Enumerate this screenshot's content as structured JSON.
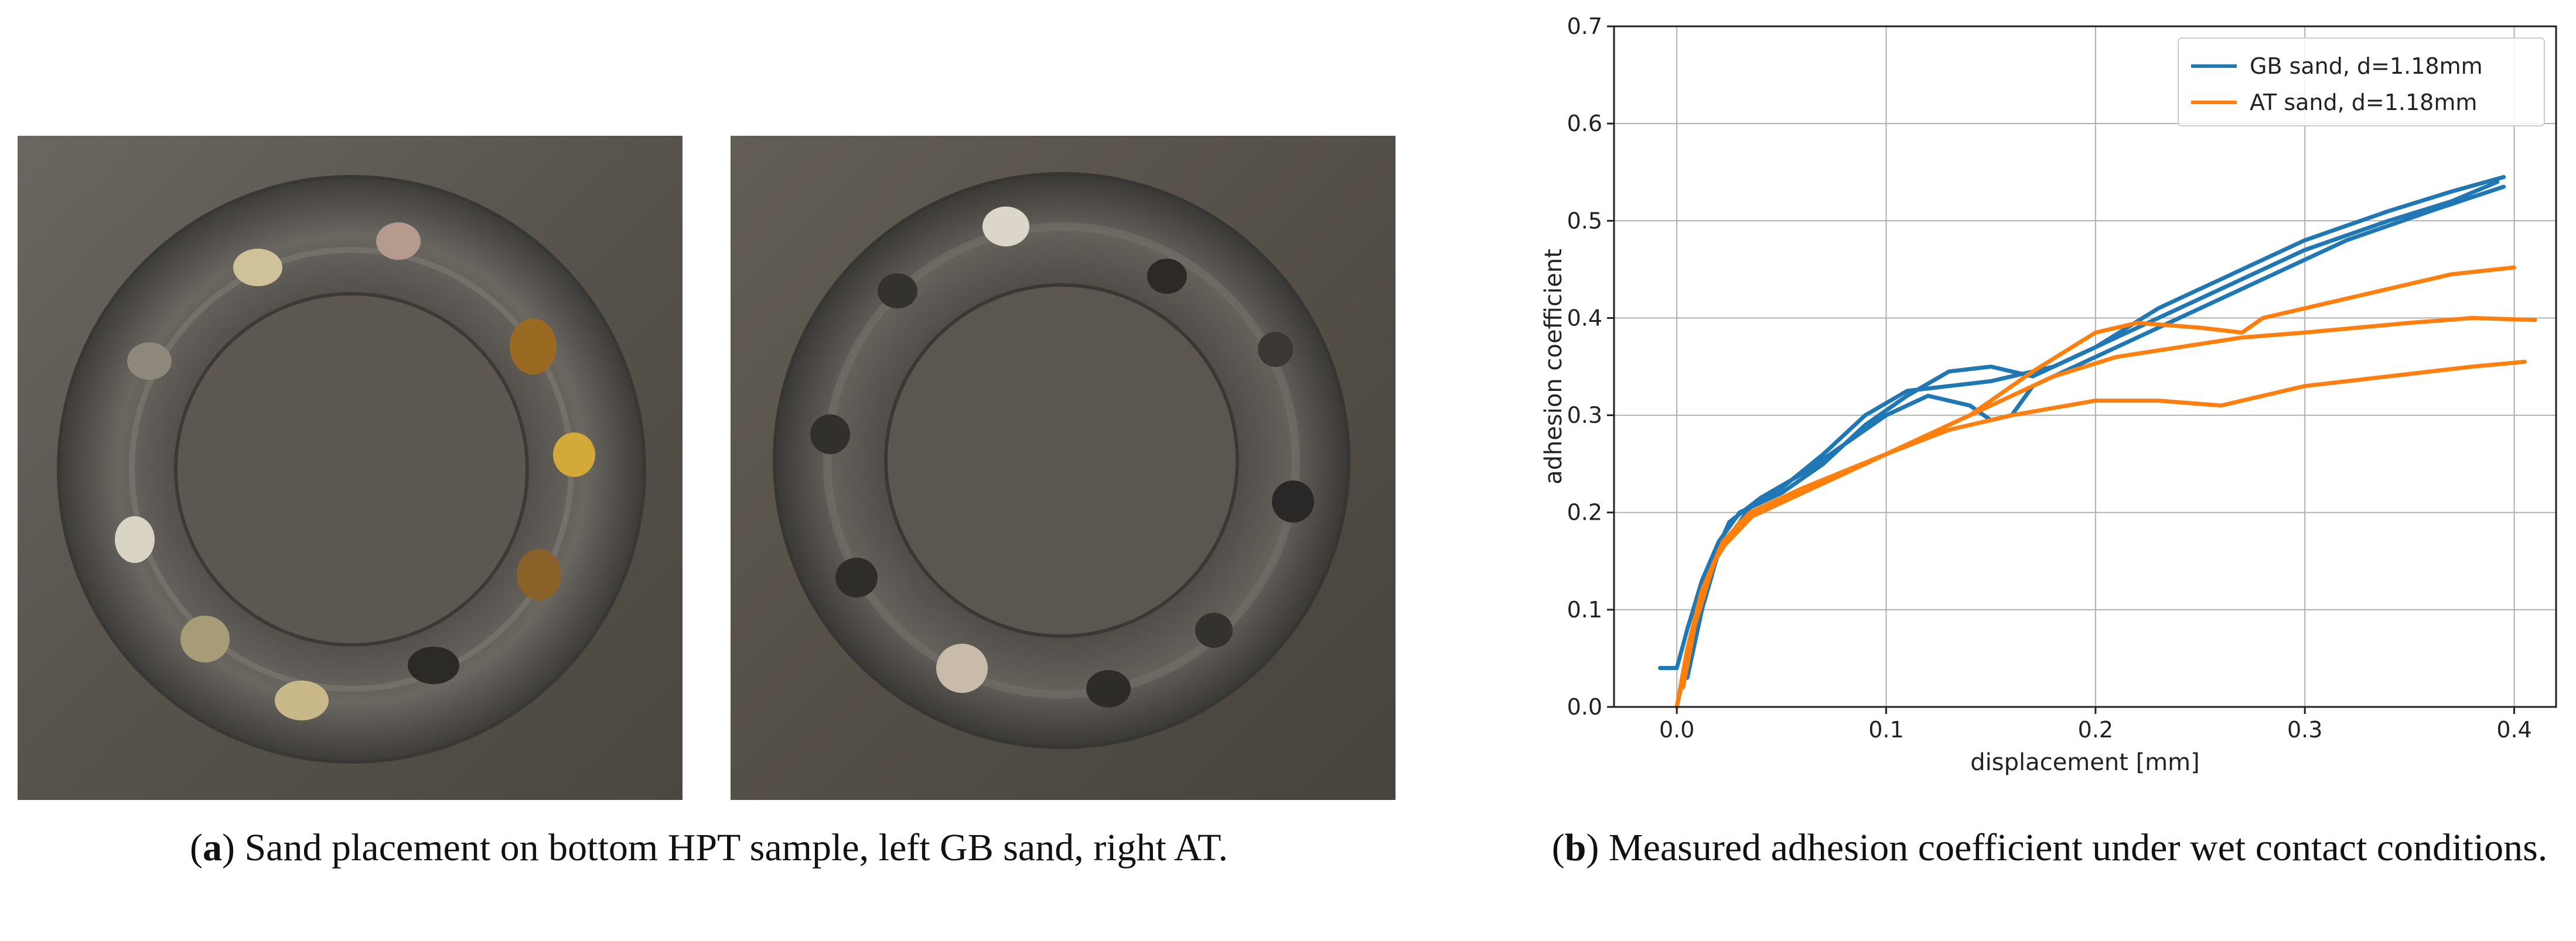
{
  "figure": {
    "panel_a": {
      "label": "a",
      "caption": "Sand placement on bottom HPT sample, left GB sand, right AT."
    },
    "panel_b": {
      "label": "b",
      "caption": "Measured adhesion coefficient under wet contact conditions."
    }
  },
  "colors": {
    "gb": "#1f77b4",
    "at": "#ff7f0e",
    "grid": "#b0b0b0",
    "plate": "#5a564e"
  },
  "chart_data": {
    "type": "line",
    "title": "",
    "xlabel": "displacement [mm]",
    "ylabel": "adhesion coefficient",
    "xlim": [
      -0.03,
      0.42
    ],
    "ylim": [
      0.0,
      0.7
    ],
    "xticks": [
      0.0,
      0.1,
      0.2,
      0.3,
      0.4
    ],
    "xtick_labels": [
      "0.0",
      "0.1",
      "0.2",
      "0.3",
      "0.4"
    ],
    "yticks": [
      0.0,
      0.1,
      0.2,
      0.3,
      0.4,
      0.5,
      0.6,
      0.7
    ],
    "ytick_labels": [
      "0.0",
      "0.1",
      "0.2",
      "0.3",
      "0.4",
      "0.5",
      "0.6",
      "0.7"
    ],
    "grid": true,
    "legend_position": "top-right",
    "series": [
      {
        "name": "GB sand, d=1.18mm",
        "color_key": "gb",
        "runs": [
          [
            [
              -0.008,
              0.04
            ],
            [
              0.0,
              0.04
            ],
            [
              0.005,
              0.08
            ],
            [
              0.012,
              0.13
            ],
            [
              0.02,
              0.17
            ],
            [
              0.03,
              0.2
            ],
            [
              0.05,
              0.22
            ],
            [
              0.07,
              0.25
            ],
            [
              0.09,
              0.29
            ],
            [
              0.11,
              0.32
            ],
            [
              0.13,
              0.345
            ],
            [
              0.15,
              0.35
            ],
            [
              0.17,
              0.34
            ],
            [
              0.2,
              0.37
            ],
            [
              0.23,
              0.41
            ],
            [
              0.26,
              0.44
            ],
            [
              0.3,
              0.48
            ],
            [
              0.34,
              0.51
            ],
            [
              0.37,
              0.53
            ],
            [
              0.395,
              0.545
            ]
          ],
          [
            [
              0.0,
              0.0
            ],
            [
              0.008,
              0.08
            ],
            [
              0.015,
              0.14
            ],
            [
              0.025,
              0.19
            ],
            [
              0.04,
              0.215
            ],
            [
              0.06,
              0.24
            ],
            [
              0.08,
              0.27
            ],
            [
              0.1,
              0.3
            ],
            [
              0.12,
              0.32
            ],
            [
              0.14,
              0.31
            ],
            [
              0.15,
              0.295
            ],
            [
              0.16,
              0.3
            ],
            [
              0.17,
              0.33
            ],
            [
              0.2,
              0.36
            ],
            [
              0.24,
              0.4
            ],
            [
              0.28,
              0.44
            ],
            [
              0.32,
              0.48
            ],
            [
              0.36,
              0.51
            ],
            [
              0.395,
              0.535
            ]
          ],
          [
            [
              0.005,
              0.03
            ],
            [
              0.012,
              0.1
            ],
            [
              0.02,
              0.16
            ],
            [
              0.035,
              0.205
            ],
            [
              0.05,
              0.225
            ],
            [
              0.07,
              0.26
            ],
            [
              0.09,
              0.3
            ],
            [
              0.11,
              0.325
            ],
            [
              0.13,
              0.33
            ],
            [
              0.15,
              0.335
            ],
            [
              0.18,
              0.35
            ],
            [
              0.22,
              0.39
            ],
            [
              0.26,
              0.43
            ],
            [
              0.3,
              0.47
            ],
            [
              0.34,
              0.5
            ],
            [
              0.37,
              0.52
            ],
            [
              0.392,
              0.54
            ]
          ]
        ]
      },
      {
        "name": "AT sand, d=1.18mm",
        "color_key": "at",
        "runs": [
          [
            [
              0.0,
              0.0
            ],
            [
              0.005,
              0.06
            ],
            [
              0.012,
              0.12
            ],
            [
              0.022,
              0.17
            ],
            [
              0.035,
              0.2
            ],
            [
              0.06,
              0.225
            ],
            [
              0.1,
              0.26
            ],
            [
              0.14,
              0.3
            ],
            [
              0.17,
              0.345
            ],
            [
              0.2,
              0.385
            ],
            [
              0.22,
              0.395
            ],
            [
              0.25,
              0.39
            ],
            [
              0.27,
              0.385
            ],
            [
              0.28,
              0.4
            ],
            [
              0.3,
              0.41
            ],
            [
              0.34,
              0.43
            ],
            [
              0.37,
              0.445
            ],
            [
              0.4,
              0.452
            ]
          ],
          [
            [
              0.003,
              0.02
            ],
            [
              0.01,
              0.1
            ],
            [
              0.02,
              0.16
            ],
            [
              0.04,
              0.205
            ],
            [
              0.07,
              0.23
            ],
            [
              0.11,
              0.27
            ],
            [
              0.15,
              0.31
            ],
            [
              0.18,
              0.34
            ],
            [
              0.21,
              0.36
            ],
            [
              0.24,
              0.37
            ],
            [
              0.27,
              0.38
            ],
            [
              0.3,
              0.385
            ],
            [
              0.35,
              0.395
            ],
            [
              0.38,
              0.4
            ],
            [
              0.41,
              0.398
            ]
          ],
          [
            [
              0.001,
              0.01
            ],
            [
              0.008,
              0.08
            ],
            [
              0.018,
              0.15
            ],
            [
              0.03,
              0.19
            ],
            [
              0.06,
              0.22
            ],
            [
              0.1,
              0.26
            ],
            [
              0.13,
              0.285
            ],
            [
              0.16,
              0.3
            ],
            [
              0.2,
              0.315
            ],
            [
              0.23,
              0.315
            ],
            [
              0.26,
              0.31
            ],
            [
              0.27,
              0.315
            ],
            [
              0.3,
              0.33
            ],
            [
              0.34,
              0.34
            ],
            [
              0.38,
              0.35
            ],
            [
              0.405,
              0.355
            ]
          ]
        ]
      }
    ]
  }
}
